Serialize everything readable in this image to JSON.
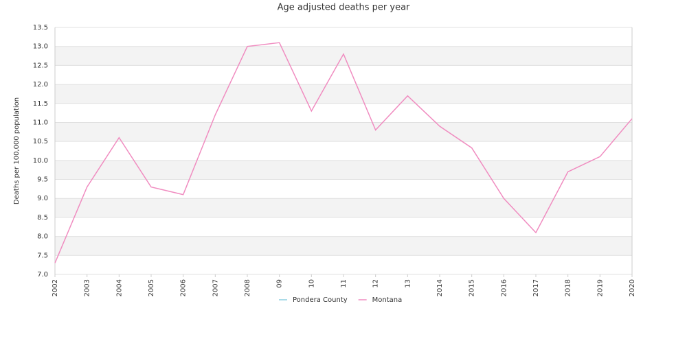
{
  "chart_data": {
    "type": "line",
    "title": "Age adjusted deaths per year",
    "ylabel": "Deaths per 100,000 population",
    "categories": [
      "2002",
      "2003",
      "2004",
      "2005",
      "2006",
      "2007",
      "2008",
      "09",
      "10",
      "11",
      "12",
      "13",
      "2014",
      "2015",
      "2016",
      "2017",
      "2018",
      "2019",
      "2020"
    ],
    "series": [
      {
        "name": "Pondera County",
        "color": "#8ecfe0",
        "values": [
          null,
          null,
          null,
          null,
          null,
          null,
          null,
          null,
          null,
          null,
          null,
          null,
          null,
          null,
          null,
          null,
          null,
          null,
          null
        ]
      },
      {
        "name": "Montana",
        "color": "#f08cc0",
        "values": [
          7.3,
          9.3,
          10.6,
          9.3,
          9.1,
          11.2,
          13.0,
          13.1,
          11.3,
          12.8,
          10.8,
          11.7,
          10.9,
          10.33,
          9.0,
          8.1,
          9.7,
          10.1,
          11.1
        ]
      }
    ],
    "ylim": [
      7,
      13.5
    ],
    "yticks": [
      {
        "value": 7,
        "label": "7.0"
      },
      7.5,
      {
        "value": 8,
        "label": "8.0"
      },
      8.5,
      {
        "value": 9,
        "label": "9.0"
      },
      9.5,
      {
        "value": 10,
        "label": "10.0"
      },
      10.5,
      {
        "value": 11,
        "label": "11.0"
      },
      11.5,
      {
        "value": 12,
        "label": "12.0"
      },
      12.5,
      {
        "value": 13,
        "label": "13.0"
      },
      13.5
    ],
    "grid": true,
    "legend": "bottom"
  }
}
